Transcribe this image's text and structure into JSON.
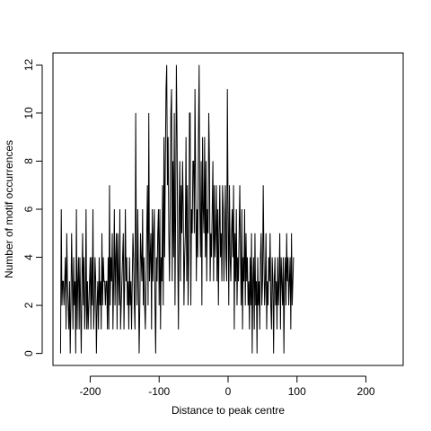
{
  "chart_data": {
    "type": "line",
    "title": "",
    "xlabel": "Distance to peak centre",
    "ylabel": "Number of motif occurrences",
    "xlim": [
      -254,
      254
    ],
    "ylim": [
      -0.5,
      12.5
    ],
    "xticks": [
      -200,
      -100,
      0,
      100,
      200
    ],
    "xtick_labels": [
      "-200",
      "-100",
      "0",
      "100",
      "200"
    ],
    "yticks": [
      0,
      2,
      4,
      6,
      8,
      10,
      12
    ],
    "ytick_labels": [
      "0",
      "2",
      "4",
      "6",
      "8",
      "10",
      "12"
    ],
    "grid": false,
    "line_color": "#000000",
    "series": [
      {
        "x_start": -243,
        "x_step": 1,
        "values": [
          0,
          6,
          2,
          3,
          3,
          2,
          3,
          4,
          1,
          5,
          3,
          2,
          1,
          3,
          0,
          2,
          5,
          3,
          1,
          4,
          2,
          3,
          0,
          6,
          1,
          3,
          4,
          1,
          4,
          2,
          0,
          3,
          5,
          2,
          4,
          1,
          2,
          6,
          1,
          3,
          1,
          2,
          3,
          4,
          1,
          4,
          2,
          6,
          1,
          2,
          4,
          3,
          0,
          2,
          3,
          1,
          4,
          2,
          3,
          1,
          5,
          2,
          4,
          3,
          3,
          2,
          3,
          3,
          1,
          4,
          1,
          7,
          2,
          4,
          3,
          5,
          1,
          3,
          6,
          2,
          4,
          5,
          1,
          5,
          3,
          2,
          6,
          1,
          2,
          3,
          4,
          5,
          1,
          3,
          6,
          3,
          4,
          2,
          3,
          1,
          4,
          2,
          3,
          1,
          3,
          5,
          4,
          2,
          1,
          10,
          4,
          2,
          6,
          3,
          0,
          2,
          5,
          4,
          3,
          6,
          2,
          4,
          2,
          1,
          3,
          5,
          7,
          2,
          10,
          3,
          4,
          5,
          1,
          6,
          3,
          5,
          6,
          2,
          0,
          4,
          3,
          5,
          6,
          2,
          6,
          1,
          4,
          3,
          7,
          2,
          9,
          4,
          8,
          11,
          12,
          7,
          9,
          5,
          3,
          6,
          10,
          11,
          3,
          8,
          4,
          10,
          2,
          6,
          12,
          9,
          4,
          1,
          6,
          8,
          3,
          7,
          5,
          8,
          6,
          2,
          4,
          5,
          9,
          3,
          7,
          2,
          4,
          10,
          10,
          2,
          6,
          5,
          8,
          8,
          5,
          11,
          7,
          3,
          6,
          4,
          9,
          12,
          6,
          4,
          8,
          2,
          9,
          6,
          5,
          9,
          4,
          8,
          3,
          6,
          5,
          10,
          8,
          3,
          5,
          4,
          6,
          8,
          3,
          7,
          4,
          5,
          7,
          3,
          6,
          2,
          5,
          7,
          4,
          5,
          3,
          7,
          6,
          3,
          5,
          7,
          4,
          3,
          11,
          6,
          2,
          7,
          4,
          3,
          5,
          6,
          4,
          7,
          1,
          5,
          3,
          6,
          2,
          4,
          3,
          5,
          7,
          4,
          2,
          6,
          1,
          4,
          3,
          6,
          2,
          5,
          3,
          4,
          2,
          3,
          1,
          4,
          2,
          5,
          0,
          3,
          4,
          1,
          5,
          2,
          3,
          0,
          4,
          2,
          3,
          1,
          4,
          5,
          2,
          3,
          7,
          4,
          2,
          3,
          5,
          1,
          3,
          2,
          4,
          3,
          5,
          2,
          1,
          4,
          3,
          0,
          3,
          4,
          2,
          3,
          1,
          4,
          2,
          3,
          5,
          1,
          4,
          3,
          2,
          4,
          0,
          3,
          4,
          2,
          5,
          3,
          4,
          2,
          3,
          4,
          1,
          5,
          2,
          3,
          4
        ]
      }
    ]
  }
}
